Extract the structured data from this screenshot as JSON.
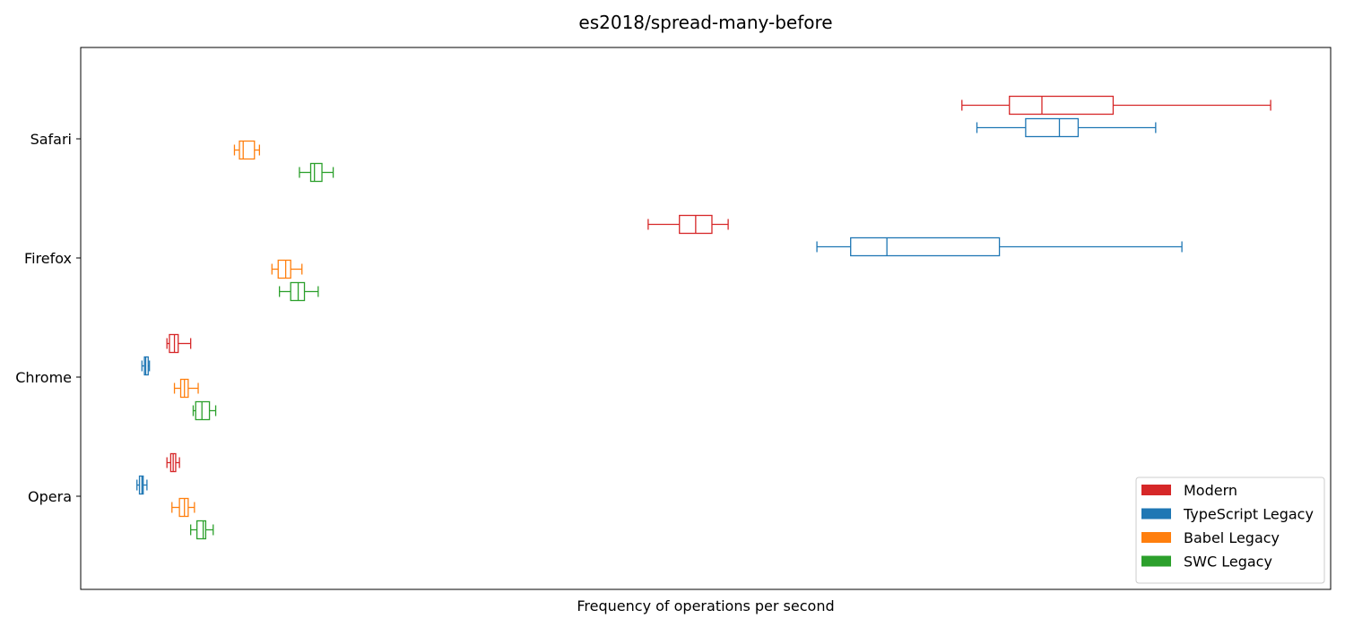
{
  "chart_data": {
    "type": "boxplot",
    "orientation": "horizontal",
    "title": "es2018/spread-many-before",
    "xlabel": "Frequency of operations per second",
    "ylabel": "",
    "x_ticks_visible": false,
    "xlim": [
      0,
      100
    ],
    "categories": [
      "Opera",
      "Chrome",
      "Firefox",
      "Safari"
    ],
    "legend": {
      "position": "lower-right"
    },
    "series": [
      {
        "name": "Modern",
        "color": "#d62728",
        "boxes": [
          {
            "category": "Opera",
            "min": 6.9,
            "q1": 7.2,
            "median": 7.4,
            "q3": 7.6,
            "max": 7.9
          },
          {
            "category": "Chrome",
            "min": 6.9,
            "q1": 7.1,
            "median": 7.5,
            "q3": 7.8,
            "max": 8.8
          },
          {
            "category": "Firefox",
            "min": 45.4,
            "q1": 47.9,
            "median": 49.2,
            "q3": 50.5,
            "max": 51.8
          },
          {
            "category": "Safari",
            "min": 70.5,
            "q1": 74.3,
            "median": 76.9,
            "q3": 82.6,
            "max": 95.2
          }
        ]
      },
      {
        "name": "TypeScript Legacy",
        "color": "#1f77b4",
        "boxes": [
          {
            "category": "Opera",
            "min": 4.5,
            "q1": 4.7,
            "median": 4.9,
            "q3": 5.0,
            "max": 5.3
          },
          {
            "category": "Chrome",
            "min": 4.9,
            "q1": 5.1,
            "median": 5.2,
            "q3": 5.4,
            "max": 5.5
          },
          {
            "category": "Firefox",
            "min": 58.9,
            "q1": 61.6,
            "median": 64.5,
            "q3": 73.5,
            "max": 88.1
          },
          {
            "category": "Safari",
            "min": 71.7,
            "q1": 75.6,
            "median": 78.3,
            "q3": 79.8,
            "max": 86.0
          }
        ]
      },
      {
        "name": "Babel Legacy",
        "color": "#ff7f0e",
        "boxes": [
          {
            "category": "Opera",
            "min": 7.3,
            "q1": 7.9,
            "median": 8.3,
            "q3": 8.6,
            "max": 9.1
          },
          {
            "category": "Chrome",
            "min": 7.5,
            "q1": 8.0,
            "median": 8.3,
            "q3": 8.6,
            "max": 9.4
          },
          {
            "category": "Firefox",
            "min": 15.3,
            "q1": 15.8,
            "median": 16.4,
            "q3": 16.8,
            "max": 17.7
          },
          {
            "category": "Safari",
            "min": 12.3,
            "q1": 12.7,
            "median": 13.0,
            "q3": 13.9,
            "max": 14.3
          }
        ]
      },
      {
        "name": "SWC Legacy",
        "color": "#2ca02c",
        "boxes": [
          {
            "category": "Opera",
            "min": 8.8,
            "q1": 9.3,
            "median": 9.8,
            "q3": 10.0,
            "max": 10.6
          },
          {
            "category": "Chrome",
            "min": 9.0,
            "q1": 9.2,
            "median": 9.7,
            "q3": 10.3,
            "max": 10.8
          },
          {
            "category": "Firefox",
            "min": 15.9,
            "q1": 16.8,
            "median": 17.4,
            "q3": 17.9,
            "max": 19.0
          },
          {
            "category": "Safari",
            "min": 17.5,
            "q1": 18.4,
            "median": 18.7,
            "q3": 19.3,
            "max": 20.2
          }
        ]
      }
    ]
  }
}
